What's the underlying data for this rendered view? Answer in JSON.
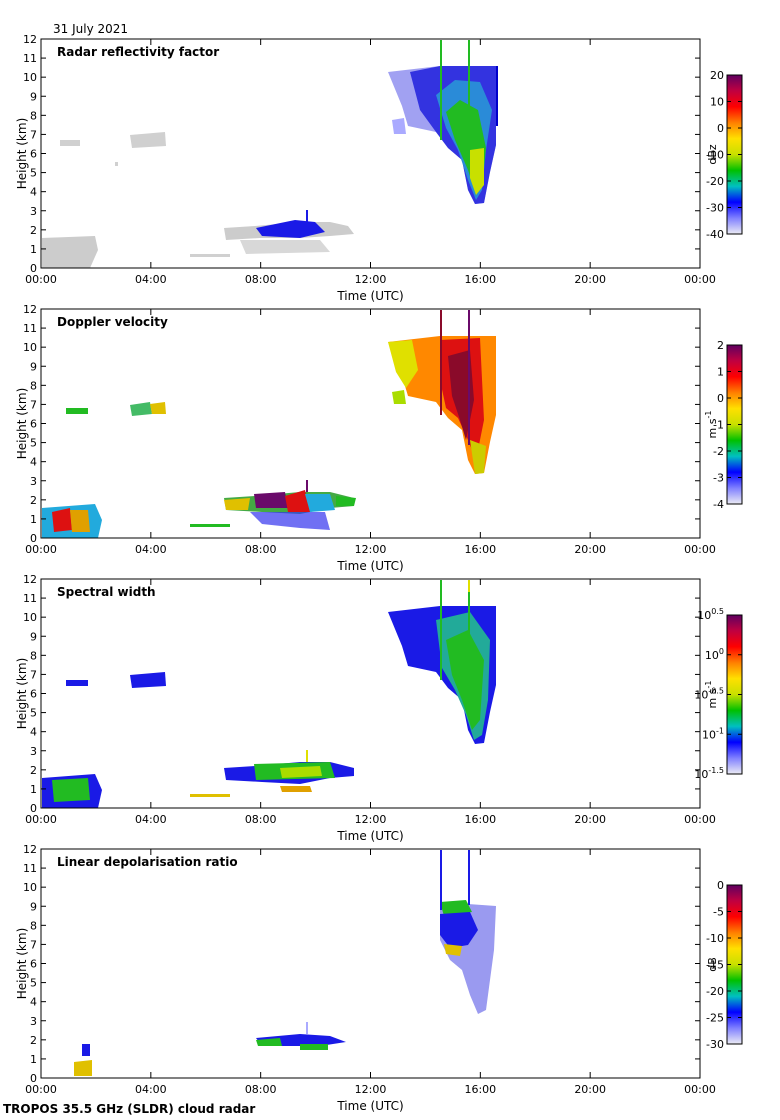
{
  "date_label": "31 July 2021",
  "footer_label": "TROPOS 35.5 GHz (SLDR) cloud radar",
  "colors": {
    "light_gray": "#cccccc",
    "blue": "#1a1ae6",
    "green": "#22bb22",
    "yellow": "#e0e000",
    "orange": "#ff8800",
    "red": "#dd1111",
    "purple": "#6a0a6a"
  },
  "colorbar_gradient": [
    "#ececf4",
    "#8080ff",
    "#0000ff",
    "#00c0c0",
    "#00c000",
    "#c8e000",
    "#ffe000",
    "#ff8000",
    "#ff0000",
    "#c00040",
    "#600060"
  ],
  "chart_data": [
    {
      "type": "heatmap",
      "title": "Radar reflectivity factor",
      "xlabel": "Time (UTC)",
      "ylabel": "Height (km)",
      "x_ticks": [
        "00:00",
        "04:00",
        "08:00",
        "12:00",
        "16:00",
        "20:00",
        "00:00"
      ],
      "xlim_hours": [
        0,
        24
      ],
      "ylim": [
        0,
        12
      ],
      "y_ticks": [
        "0",
        "1",
        "2",
        "3",
        "4",
        "5",
        "6",
        "7",
        "8",
        "9",
        "10",
        "11",
        "12"
      ],
      "colorbar": {
        "label": "dBz",
        "ticks": [
          "20",
          "10",
          "0",
          "-10",
          "-20",
          "-30",
          "-40"
        ],
        "range": [
          -40,
          20
        ]
      },
      "features": [
        {
          "name": "high cloud",
          "t_start": 12.5,
          "t_end": 16.5,
          "z_bottom": 3.3,
          "z_top": 10.5,
          "value": "-30 to -10 dBz"
        },
        {
          "name": "low cloud",
          "t_start": 6.5,
          "t_end": 11.0,
          "z_bottom": 1.0,
          "z_top": 2.5,
          "value": "-30 dBz"
        },
        {
          "name": "near-surface echo",
          "t_start": 0.0,
          "t_end": 1.8,
          "z_bottom": 0.0,
          "z_top": 1.8,
          "value": "-40 dBz"
        }
      ]
    },
    {
      "type": "heatmap",
      "title": "Doppler velocity",
      "xlabel": "Time (UTC)",
      "ylabel": "Height (km)",
      "x_ticks": [
        "00:00",
        "04:00",
        "08:00",
        "12:00",
        "16:00",
        "20:00",
        "00:00"
      ],
      "xlim_hours": [
        0,
        24
      ],
      "ylim": [
        0,
        12
      ],
      "y_ticks": [
        "0",
        "1",
        "2",
        "3",
        "4",
        "5",
        "6",
        "7",
        "8",
        "9",
        "10",
        "11",
        "12"
      ],
      "colorbar": {
        "label": "m s",
        "label_sup": "-1",
        "ticks": [
          "2",
          "1",
          "0",
          "-1",
          "-2",
          "-3",
          "-4"
        ],
        "range": [
          -4,
          2
        ]
      },
      "features": [
        {
          "name": "high cloud",
          "t_start": 12.5,
          "t_end": 16.5,
          "z_bottom": 3.3,
          "z_top": 10.5,
          "value": "0 to 1.5 m/s"
        },
        {
          "name": "low cloud",
          "t_start": 6.5,
          "t_end": 11.0,
          "z_bottom": 1.0,
          "z_top": 2.5,
          "value": "-3 to 2 m/s"
        }
      ]
    },
    {
      "type": "heatmap",
      "title": "Spectral width",
      "xlabel": "Time (UTC)",
      "ylabel": "Height (km)",
      "x_ticks": [
        "00:00",
        "04:00",
        "08:00",
        "12:00",
        "16:00",
        "20:00",
        "00:00"
      ],
      "xlim_hours": [
        0,
        24
      ],
      "ylim": [
        0,
        12
      ],
      "y_ticks": [
        "0",
        "1",
        "2",
        "3",
        "4",
        "5",
        "6",
        "7",
        "8",
        "9",
        "10",
        "11",
        "12"
      ],
      "colorbar": {
        "label": "m s",
        "label_sup": "-1",
        "ticks": [
          "10^0.5",
          "10^0",
          "10^-0.5",
          "10^-1",
          "10^-1.5"
        ],
        "range_log10": [
          -1.5,
          0.5
        ]
      },
      "features": [
        {
          "name": "high cloud",
          "t_start": 12.5,
          "t_end": 16.5,
          "z_bottom": 3.3,
          "z_top": 10.5,
          "value": "10^-1 to 10^-0.5"
        },
        {
          "name": "low cloud",
          "t_start": 6.5,
          "t_end": 11.0,
          "z_bottom": 1.0,
          "z_top": 2.5,
          "value": "10^-1 to 10^0"
        }
      ]
    },
    {
      "type": "heatmap",
      "title": "Linear depolarisation ratio",
      "xlabel": "Time (UTC)",
      "ylabel": "Height (km)",
      "x_ticks": [
        "00:00",
        "04:00",
        "08:00",
        "12:00",
        "16:00",
        "20:00",
        "00:00"
      ],
      "xlim_hours": [
        0,
        24
      ],
      "ylim": [
        0,
        12
      ],
      "y_ticks": [
        "0",
        "1",
        "2",
        "3",
        "4",
        "5",
        "6",
        "7",
        "8",
        "9",
        "10",
        "11",
        "12"
      ],
      "colorbar": {
        "label": "dB",
        "ticks": [
          "0",
          "-5",
          "-10",
          "-15",
          "-20",
          "-25",
          "-30"
        ],
        "range": [
          -30,
          0
        ]
      },
      "features": [
        {
          "name": "high cloud",
          "t_start": 14.5,
          "t_end": 16.5,
          "z_bottom": 3.5,
          "z_top": 9.5,
          "value": "-30 to -25 dB"
        },
        {
          "name": "low cloud",
          "t_start": 7.0,
          "t_end": 11.0,
          "z_bottom": 1.5,
          "z_top": 2.5,
          "value": "-25 to -10 dB"
        }
      ]
    }
  ]
}
